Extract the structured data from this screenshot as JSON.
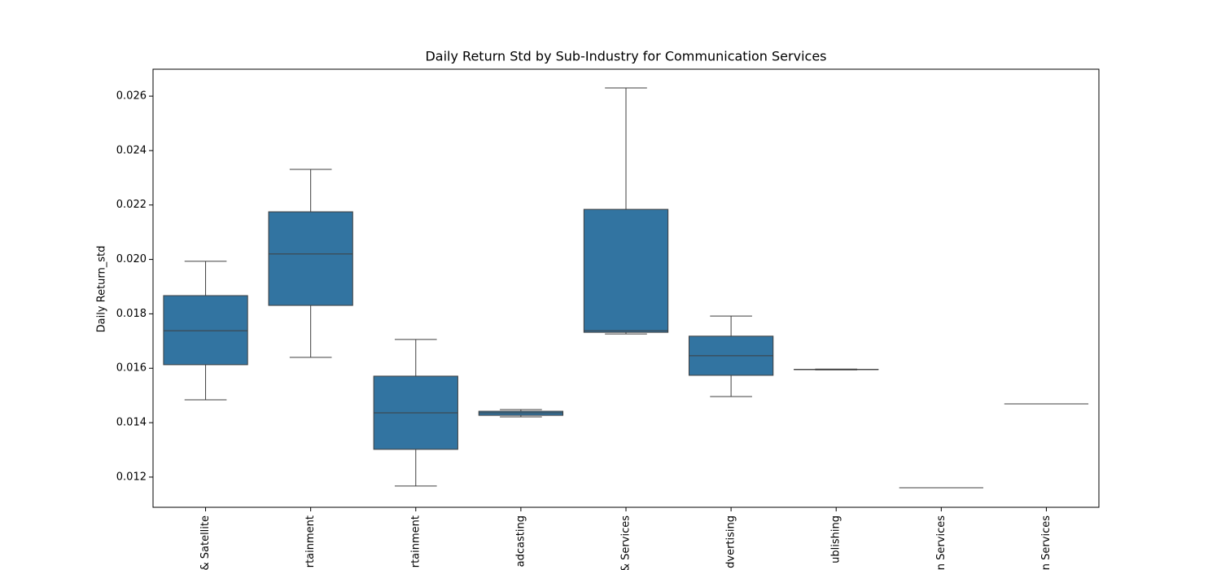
{
  "chart_data": {
    "type": "box",
    "title": "Daily Return Std by Sub-Industry for Communication Services",
    "y_label": "Daily Return_std",
    "categories": [
      "& Satellite",
      "rtainment",
      "rtainment",
      "adcasting",
      "& Services",
      "dvertising",
      "ublishing",
      "n Services",
      "n Services"
    ],
    "min": [
      0.01484,
      0.0164,
      0.01167,
      0.01421,
      0.01726,
      0.01496,
      0.01594,
      0.01161,
      0.01469
    ],
    "q1": [
      0.01613,
      0.01831,
      0.01302,
      0.01427,
      0.01732,
      0.01574,
      0.01595,
      0.01161,
      0.01469
    ],
    "median": [
      0.01738,
      0.0202,
      0.01436,
      0.01436,
      0.01738,
      0.01646,
      0.01595,
      0.01161,
      0.01469
    ],
    "q3": [
      0.01867,
      0.02175,
      0.01571,
      0.01442,
      0.02184,
      0.01718,
      0.01596,
      0.01161,
      0.01469
    ],
    "max": [
      0.01993,
      0.02331,
      0.01706,
      0.01448,
      0.0263,
      0.01792,
      0.01597,
      0.01161,
      0.01469
    ],
    "color": "#3274a1",
    "line_color": "#3f3f3f",
    "ylim": [
      0.01089,
      0.02699
    ],
    "yticks": [
      0.012,
      0.014,
      0.016,
      0.018,
      {
        "value": 0.02,
        "label": "0.020"
      },
      0.022,
      0.024,
      0.026
    ],
    "grid": false
  }
}
